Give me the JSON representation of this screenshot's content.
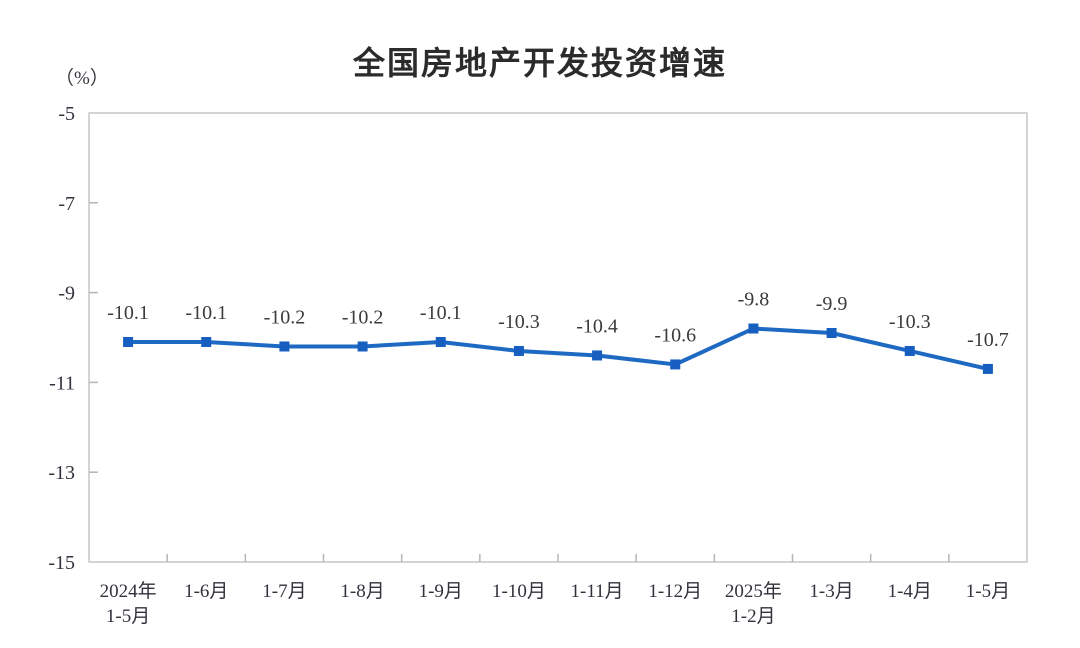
{
  "chart_data": {
    "type": "line",
    "title": "全国房地产开发投资增速",
    "unit_label": "（%）",
    "categories": [
      "2024年\n1-5月",
      "1-6月",
      "1-7月",
      "1-8月",
      "1-9月",
      "1-10月",
      "1-11月",
      "1-12月",
      "2025年\n1-2月",
      "1-3月",
      "1-4月",
      "1-5月"
    ],
    "series": [
      {
        "name": "全国房地产开发投资增速",
        "values": [
          -10.1,
          -10.1,
          -10.2,
          -10.2,
          -10.1,
          -10.3,
          -10.4,
          -10.6,
          -9.8,
          -9.9,
          -10.3,
          -10.7
        ]
      }
    ],
    "data_labels": [
      "-10.1",
      "-10.1",
      "-10.2",
      "-10.2",
      "-10.1",
      "-10.3",
      "-10.4",
      "-10.6",
      "-9.8",
      "-9.9",
      "-10.3",
      "-10.7"
    ],
    "yticks": [
      -5,
      -7,
      -9,
      -11,
      -13,
      -15
    ],
    "ylim": [
      -15,
      -5
    ],
    "xlabel": "",
    "ylabel": "（%）",
    "grid": false,
    "legend": "none",
    "colors": {
      "line": "#1e6ac3",
      "marker": "#165fc0",
      "axis_border": "#c6c6c6",
      "tick": "#b5b5b5",
      "data_label": "#3b3b3b",
      "tick_label": "#32323c",
      "title": "#2b2b2b"
    }
  }
}
